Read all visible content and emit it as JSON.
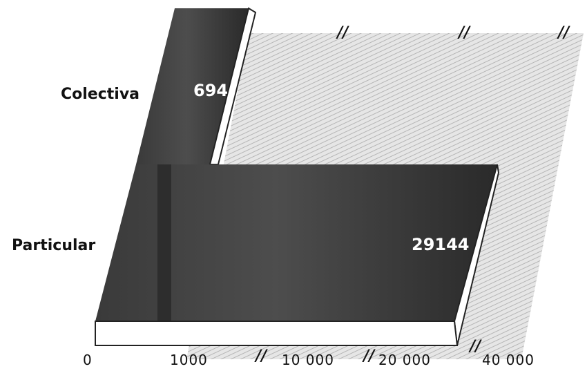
{
  "chart_data": {
    "type": "bar",
    "orientation": "horizontal",
    "style": "3d-oblique",
    "categories": [
      "Colectiva",
      "Particular"
    ],
    "values": [
      694,
      29144
    ],
    "value_labels": [
      "694",
      "29144"
    ],
    "x_ticks": [
      0,
      1000,
      10000,
      20000,
      40000
    ],
    "x_tick_labels": [
      "0",
      "1000",
      "10 000",
      "20 000",
      "40 000"
    ],
    "axis_breaks": true,
    "break_marks": [
      "//",
      "//",
      "//",
      "//",
      "//",
      "//",
      "//"
    ],
    "grid": false,
    "colors": {
      "bar": "#2f2f2f",
      "bar_highlight": "#4a4a4a",
      "side": "#ffffff",
      "shading": "#bdbdbd"
    }
  }
}
